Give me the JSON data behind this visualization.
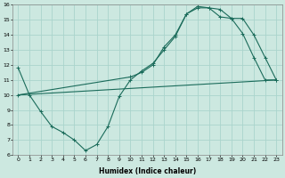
{
  "xlabel": "Humidex (Indice chaleur)",
  "xlim": [
    -0.5,
    23.5
  ],
  "ylim": [
    6,
    16
  ],
  "xticks": [
    0,
    1,
    2,
    3,
    4,
    5,
    6,
    7,
    8,
    9,
    10,
    11,
    12,
    13,
    14,
    15,
    16,
    17,
    18,
    19,
    20,
    21,
    22,
    23
  ],
  "yticks": [
    6,
    7,
    8,
    9,
    10,
    11,
    12,
    13,
    14,
    15,
    16
  ],
  "bg_color": "#cce8e0",
  "grid_color": "#aad4cc",
  "line_color": "#1a6b5a",
  "line1_x": [
    0,
    1,
    2,
    3,
    4,
    5,
    6,
    7,
    8,
    9,
    10,
    11,
    12,
    13,
    14,
    15,
    16,
    17,
    18,
    19,
    20,
    21,
    22,
    23
  ],
  "line1_y": [
    11.8,
    10.0,
    8.9,
    7.9,
    7.5,
    7.0,
    6.3,
    6.7,
    7.9,
    9.9,
    11.0,
    11.6,
    12.1,
    13.0,
    13.9,
    15.4,
    15.8,
    15.8,
    15.7,
    15.1,
    14.1,
    12.5,
    11.0,
    11.0
  ],
  "line1_markers_x": [
    0,
    1,
    2,
    3,
    4,
    5,
    6,
    7,
    8,
    9,
    10,
    11,
    12,
    13,
    14,
    15,
    16,
    17,
    18,
    19,
    20,
    21,
    22,
    23
  ],
  "line1_markers_y": [
    11.8,
    10.0,
    8.9,
    7.9,
    7.5,
    7.0,
    6.3,
    6.7,
    7.9,
    9.9,
    11.0,
    11.6,
    12.1,
    13.0,
    13.9,
    15.4,
    15.8,
    15.8,
    15.7,
    15.1,
    14.1,
    12.5,
    11.0,
    11.0
  ],
  "line2_x": [
    0,
    23
  ],
  "line2_y": [
    10.0,
    11.0
  ],
  "line3_x": [
    0,
    10,
    11,
    12,
    13,
    14,
    15,
    16,
    17,
    18,
    19,
    20,
    21,
    22,
    23
  ],
  "line3_y": [
    10.0,
    11.2,
    11.5,
    12.0,
    13.2,
    14.0,
    15.4,
    15.9,
    15.8,
    15.2,
    15.1,
    15.1,
    14.0,
    12.5,
    11.0
  ],
  "line3_markers_x": [
    0,
    10,
    11,
    12,
    13,
    14,
    15,
    16,
    17,
    18,
    19,
    20,
    21,
    22,
    23
  ],
  "line3_markers_y": [
    10.0,
    11.2,
    11.5,
    12.0,
    13.2,
    14.0,
    15.4,
    15.9,
    15.8,
    15.2,
    15.1,
    15.1,
    14.0,
    12.5,
    11.0
  ]
}
